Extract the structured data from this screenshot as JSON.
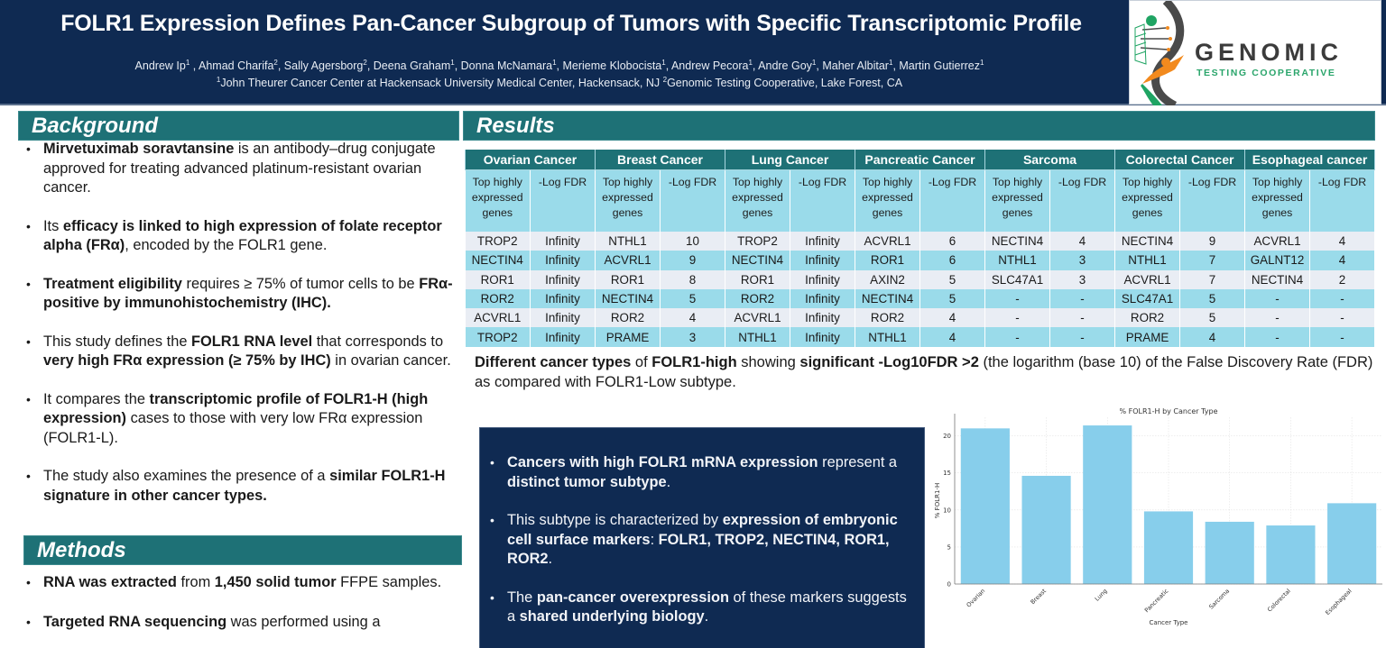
{
  "header": {
    "title": "FOLR1 Expression Defines Pan-Cancer Subgroup of Tumors with Specific Transcriptomic Profile",
    "authors": [
      {
        "name": "Andrew Ip",
        "aff": "1"
      },
      {
        "name": "Ahmad Charifa",
        "aff": "2"
      },
      {
        "name": "Sally Agersborg",
        "aff": "2"
      },
      {
        "name": "Deena Graham",
        "aff": "1"
      },
      {
        "name": "Donna McNamara",
        "aff": "1"
      },
      {
        "name": "Merieme Klobocista",
        "aff": "1"
      },
      {
        "name": "Andrew Pecora",
        "aff": "1"
      },
      {
        "name": "Andre Goy",
        "aff": "1"
      },
      {
        "name": "Maher Albitar",
        "aff": "1"
      },
      {
        "name": "Martin Gutierrez",
        "aff": "1"
      }
    ],
    "affiliations": [
      {
        "num": "1",
        "text": "John Theurer Cancer Center at Hackensack University Medical Center, Hackensack, NJ"
      },
      {
        "num": "2",
        "text": "Genomic Testing Cooperative, Lake Forest, CA"
      }
    ],
    "logo": {
      "word": "GENOMIC",
      "sub": "TESTING COOPERATIVE",
      "colors": {
        "green": "#1fa463",
        "orange": "#f28a1e",
        "gray": "#4a4a4a"
      }
    }
  },
  "background": {
    "heading": "Background",
    "bullets": [
      [
        {
          "b": true,
          "t": "Mirvetuximab soravtansine"
        },
        {
          "b": false,
          "t": " is an antibody–drug conjugate approved for treating advanced platinum-resistant ovarian cancer."
        }
      ],
      [
        {
          "b": false,
          "t": "Its "
        },
        {
          "b": true,
          "t": "efficacy is linked to high expression of folate receptor alpha (FRα)"
        },
        {
          "b": false,
          "t": ", encoded by the FOLR1 gene."
        }
      ],
      [
        {
          "b": true,
          "t": "Treatment eligibility"
        },
        {
          "b": false,
          "t": " requires ≥ 75% of tumor cells to be "
        },
        {
          "b": true,
          "t": "FRα-positive by immunohistochemistry (IHC)."
        }
      ],
      [
        {
          "b": false,
          "t": "This study defines the "
        },
        {
          "b": true,
          "t": "FOLR1 RNA level"
        },
        {
          "b": false,
          "t": " that corresponds to "
        },
        {
          "b": true,
          "t": "very high FRα expression (≥ 75% by IHC)"
        },
        {
          "b": false,
          "t": " in ovarian cancer."
        }
      ],
      [
        {
          "b": false,
          "t": "It compares the "
        },
        {
          "b": true,
          "t": "transcriptomic profile of FOLR1-H (high expression)"
        },
        {
          "b": false,
          "t": " cases to those with very low FRα expression (FOLR1-L)."
        }
      ],
      [
        {
          "b": false,
          "t": "The study also examines the presence of a "
        },
        {
          "b": true,
          "t": "similar FOLR1-H signature in other cancer types."
        }
      ]
    ]
  },
  "methods": {
    "heading": "Methods",
    "bullets": [
      [
        {
          "b": true,
          "t": "RNA was extracted"
        },
        {
          "b": false,
          "t": " from "
        },
        {
          "b": true,
          "t": "1,450 solid tumor"
        },
        {
          "b": false,
          "t": " FFPE samples."
        }
      ],
      [
        {
          "b": true,
          "t": "Targeted RNA sequencing"
        },
        {
          "b": false,
          "t": " was performed using a"
        }
      ]
    ]
  },
  "results": {
    "heading": "Results",
    "table": {
      "groups": [
        "Ovarian Cancer",
        "Breast Cancer",
        "Lung Cancer",
        "Pancreatic Cancer",
        "Sarcoma",
        "Colorectal Cancer",
        "Esophageal cancer"
      ],
      "sub_gene": "Top highly expressed genes",
      "sub_fdr": "-Log FDR",
      "rows": [
        [
          "TROP2",
          "Infinity",
          "NTHL1",
          "10",
          "TROP2",
          "Infinity",
          "ACVRL1",
          "6",
          "NECTIN4",
          "4",
          "NECTIN4",
          "9",
          "ACVRL1",
          "4"
        ],
        [
          "NECTIN4",
          "Infinity",
          "ACVRL1",
          "9",
          "NECTIN4",
          "Infinity",
          "ROR1",
          "6",
          "NTHL1",
          "3",
          "NTHL1",
          "7",
          "GALNT12",
          "4"
        ],
        [
          "ROR1",
          "Infinity",
          "ROR1",
          "8",
          "ROR1",
          "Infinity",
          "AXIN2",
          "5",
          "SLC47A1",
          "3",
          "ACVRL1",
          "7",
          "NECTIN4",
          "2"
        ],
        [
          "ROR2",
          "Infinity",
          "NECTIN4",
          "5",
          "ROR2",
          "Infinity",
          "NECTIN4",
          "5",
          "-",
          "-",
          "SLC47A1",
          "5",
          "-",
          "-"
        ],
        [
          "ACVRL1",
          "Infinity",
          "ROR2",
          "4",
          "ACVRL1",
          "Infinity",
          "ROR2",
          "4",
          "-",
          "-",
          "ROR2",
          "5",
          "-",
          "-"
        ],
        [
          "TROP2",
          "Infinity",
          "PRAME",
          "3",
          "NTHL1",
          "Infinity",
          "NTHL1",
          "4",
          "-",
          "-",
          "PRAME",
          "4",
          "-",
          "-"
        ]
      ]
    },
    "caption": [
      {
        "b": true,
        "t": "Different cancer types"
      },
      {
        "b": false,
        "t": " of "
      },
      {
        "b": true,
        "t": "FOLR1-high"
      },
      {
        "b": false,
        "t": " showing "
      },
      {
        "b": true,
        "t": "significant -Log10FDR >2"
      },
      {
        "b": false,
        "t": " (the logarithm (base 10) of the False Discovery Rate (FDR) as compared with FOLR1-Low subtype."
      }
    ],
    "conclusions": [
      [
        {
          "b": true,
          "t": "Cancers with high FOLR1 mRNA expression"
        },
        {
          "b": false,
          "t": " represent a "
        },
        {
          "b": true,
          "t": "distinct tumor subtype"
        },
        {
          "b": false,
          "t": "."
        }
      ],
      [
        {
          "b": false,
          "t": "This subtype is characterized by "
        },
        {
          "b": true,
          "t": "expression of embryonic cell surface markers"
        },
        {
          "b": false,
          "t": ": "
        },
        {
          "b": true,
          "t": "FOLR1, TROP2, NECTIN4, ROR1, ROR2"
        },
        {
          "b": false,
          "t": "."
        }
      ],
      [
        {
          "b": false,
          "t": "The "
        },
        {
          "b": true,
          "t": "pan-cancer overexpression"
        },
        {
          "b": false,
          "t": " of these markers suggests a "
        },
        {
          "b": true,
          "t": "shared underlying biology"
        },
        {
          "b": false,
          "t": "."
        }
      ]
    ]
  },
  "colors": {
    "navy": "#0f2a52",
    "teal": "#1e7176",
    "table_light_blue": "#9adbea",
    "table_light_gray": "#e9edf4",
    "bar": "#87ceeb"
  },
  "chart_data": {
    "type": "bar",
    "title": "% FOLR1-H by Cancer Type",
    "xlabel": "Cancer Type",
    "ylabel": "% FOLR1-H",
    "categories": [
      "Ovarian",
      "Breast",
      "Lung",
      "Pancreatic",
      "Sarcoma",
      "Colorectal",
      "Esophageal"
    ],
    "values": [
      21.0,
      14.6,
      21.4,
      9.8,
      8.4,
      7.9,
      10.9
    ],
    "yticks": [
      0,
      5,
      10,
      15,
      20
    ],
    "ylim": [
      0,
      22.5
    ],
    "grid": true,
    "legend": null,
    "bar_color": "#87ceeb"
  }
}
